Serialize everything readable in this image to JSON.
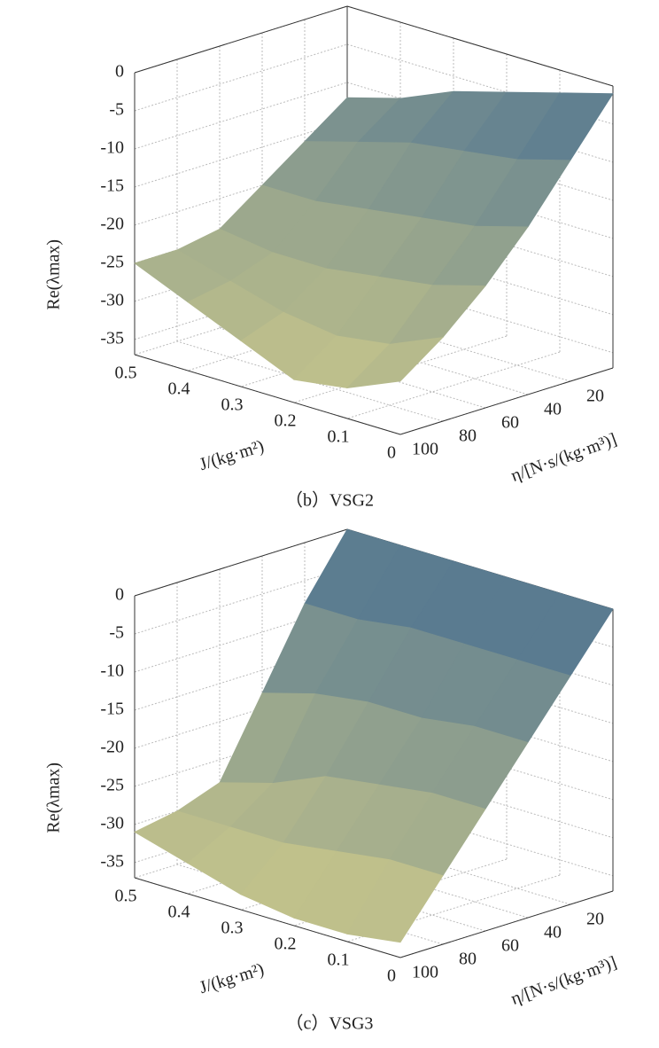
{
  "chart_data": [
    {
      "type": "surface",
      "caption": "（b）VSG2",
      "zlabel": "Re(λmax)",
      "xlabel": "J/(kg·m²)",
      "ylabel": "η/[N·s/(kg·m³)]",
      "x": [
        0,
        0.1,
        0.2,
        0.3,
        0.4,
        0.5
      ],
      "y": [
        0,
        20,
        40,
        60,
        80,
        100
      ],
      "z": [
        [
          -1,
          -8,
          -15,
          -21,
          -26,
          -30
        ],
        [
          -3,
          -10,
          -17,
          -23,
          -29,
          -33
        ],
        [
          -5,
          -11,
          -18,
          -24,
          -30,
          -34
        ],
        [
          -7,
          -12,
          -19,
          -25,
          -29,
          -31
        ],
        [
          -10,
          -14,
          -20,
          -25,
          -27,
          -28
        ],
        [
          -12,
          -16,
          -20,
          -24,
          -25,
          -25
        ]
      ],
      "xlim": [
        0,
        0.5
      ],
      "xticks": [
        0,
        0.1,
        0.2,
        0.3,
        0.4,
        0.5
      ],
      "ylim": [
        0,
        100
      ],
      "yticks": [
        20,
        40,
        60,
        80,
        100
      ],
      "zlim": [
        -37,
        0
      ],
      "zticks": [
        -35,
        -30,
        -25,
        -20,
        -15,
        -10,
        -5,
        0
      ],
      "grid": true,
      "colormap": [
        "#c9c78b",
        "#4e7391"
      ]
    },
    {
      "type": "surface",
      "caption": "（c）VSG3",
      "zlabel": "Re(λmax)",
      "xlabel": "J/(kg·m²)",
      "ylabel": "η/[N·s/(kg·m³)]",
      "x": [
        0,
        0.1,
        0.2,
        0.3,
        0.4,
        0.5
      ],
      "y": [
        0,
        20,
        40,
        60,
        80,
        100
      ],
      "z": [
        [
          0,
          -7,
          -14,
          -21,
          -28,
          -35
        ],
        [
          0,
          -7,
          -14,
          -21,
          -28,
          -36
        ],
        [
          0,
          -7,
          -15,
          -22,
          -29,
          -36
        ],
        [
          0,
          -7,
          -15,
          -23,
          -30,
          -35
        ],
        [
          0,
          -8,
          -16,
          -26,
          -30,
          -33
        ],
        [
          0,
          -8,
          -18,
          -28,
          -30,
          -31
        ]
      ],
      "xlim": [
        0,
        0.5
      ],
      "xticks": [
        0,
        0.1,
        0.2,
        0.3,
        0.4,
        0.5
      ],
      "ylim": [
        0,
        100
      ],
      "yticks": [
        20,
        40,
        60,
        80,
        100
      ],
      "zlim": [
        -37,
        0
      ],
      "zticks": [
        -35,
        -30,
        -25,
        -20,
        -15,
        -10,
        -5,
        0
      ],
      "grid": true,
      "colormap": [
        "#c9c78b",
        "#4e7391"
      ]
    }
  ]
}
